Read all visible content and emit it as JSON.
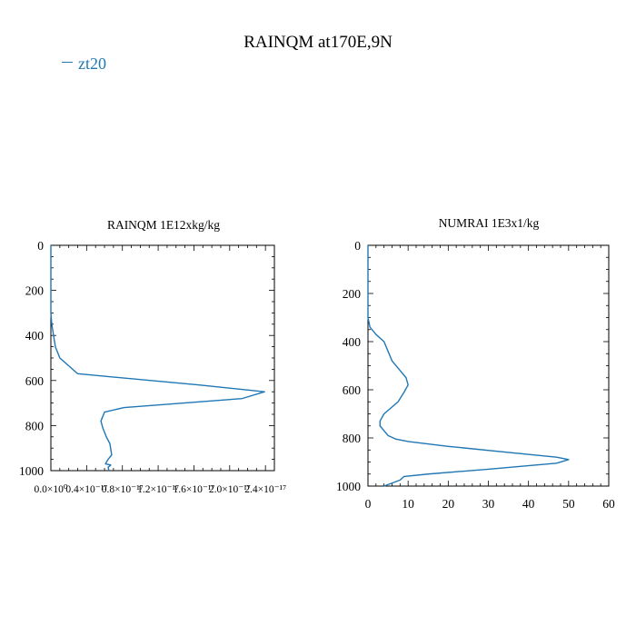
{
  "title": "RAINQM at170E,9N",
  "legend": [
    {
      "label": "zt20",
      "color": "#1f77b4"
    }
  ],
  "chart_data": [
    {
      "type": "line",
      "title": "RAINQM  1E12xkg/kg",
      "xlabel": "",
      "ylabel": "",
      "xlim": [
        0.0,
        2.5e-17
      ],
      "ylim": [
        1000,
        0
      ],
      "x_tick_values": [
        0.0,
        4e-18,
        8e-18,
        1.2e-17,
        1.6e-17,
        2e-17,
        2.4e-17
      ],
      "x_tick_labels": [
        "0.0×10⁰",
        "0.4×10⁻¹⁷",
        "0.8×10⁻¹⁷",
        "1.2×10⁻¹⁷",
        "1.6×10⁻¹⁷",
        "2.0×10⁻¹⁷",
        "2.4×10⁻¹⁷"
      ],
      "y_ticks": [
        0,
        200,
        400,
        600,
        800,
        1000
      ],
      "grid": false,
      "series": [
        {
          "name": "zt20",
          "color": "#1f77b4",
          "x": [
            0.0,
            0.0,
            1e-19,
            3e-19,
            5e-19,
            1e-18,
            3e-18,
            1.67e-17,
            2.39e-17,
            2.14e-17,
            8.2e-18,
            6e-18,
            5.6e-18,
            5.8e-18,
            6.2e-18,
            6.6e-18,
            6.8e-18,
            6.4e-18,
            6.1e-18,
            6.7e-18,
            6.4e-18,
            6.5e-18
          ],
          "y": [
            0,
            300,
            350,
            400,
            450,
            500,
            570,
            620,
            650,
            680,
            720,
            740,
            780,
            810,
            850,
            880,
            930,
            950,
            970,
            975,
            985,
            1000
          ]
        }
      ]
    },
    {
      "type": "line",
      "title": "NUMRAI  1E3x1/kg",
      "xlabel": "",
      "ylabel": "",
      "xlim": [
        0,
        60
      ],
      "ylim": [
        1000,
        0
      ],
      "x_ticks": [
        0,
        10,
        20,
        30,
        40,
        50,
        60
      ],
      "y_ticks": [
        0,
        200,
        400,
        600,
        800,
        1000
      ],
      "grid": false,
      "series": [
        {
          "name": "zt20",
          "color": "#1f77b4",
          "x": [
            0,
            0,
            0.5,
            2,
            4,
            5,
            6,
            8,
            9.5,
            10,
            9,
            7.5,
            4,
            3,
            3,
            4,
            5,
            7,
            10,
            20,
            35,
            47,
            50,
            47,
            30,
            15,
            9,
            8,
            4
          ],
          "y": [
            0,
            300,
            340,
            370,
            400,
            440,
            480,
            520,
            550,
            580,
            610,
            650,
            700,
            730,
            750,
            770,
            790,
            805,
            815,
            835,
            860,
            880,
            890,
            905,
            930,
            950,
            960,
            975,
            1000
          ]
        }
      ]
    }
  ]
}
